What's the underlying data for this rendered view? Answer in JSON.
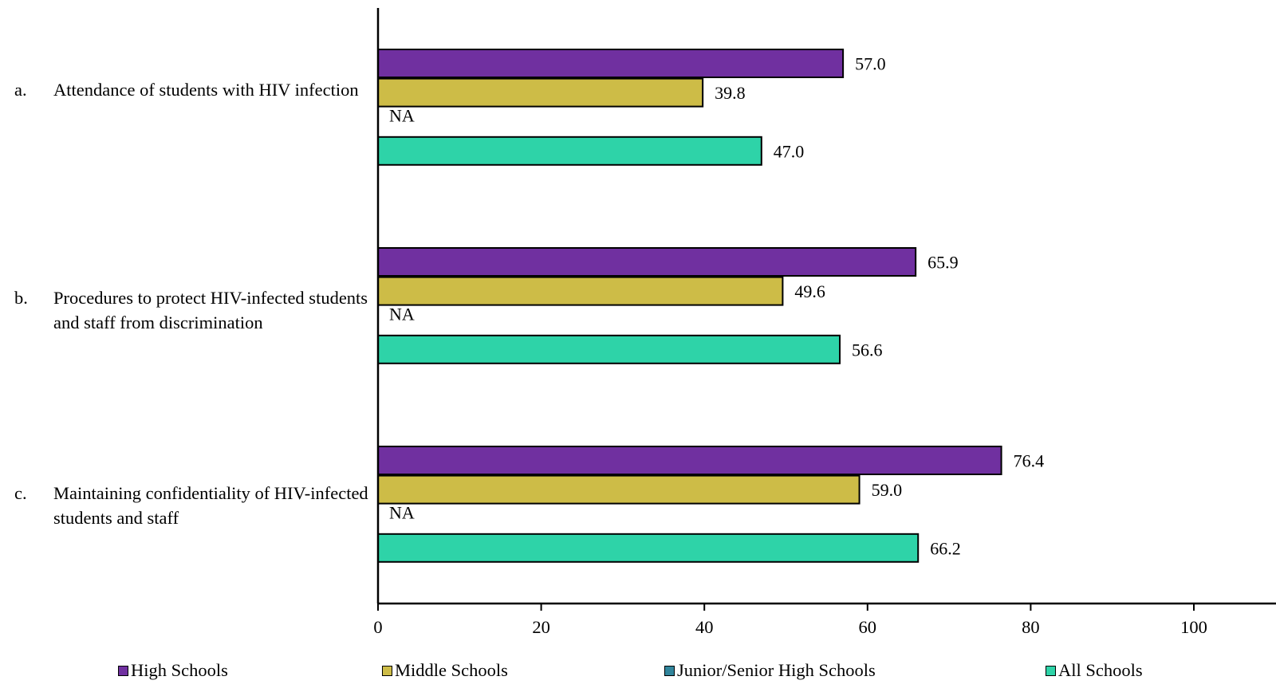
{
  "chart_data": {
    "type": "bar",
    "orientation": "horizontal",
    "categories": [
      {
        "letter": "a.",
        "text": "Attendance of students with HIV infection"
      },
      {
        "letter": "b.",
        "text": "Procedures to protect HIV-infected students and staff from discrimination"
      },
      {
        "letter": "c.",
        "text": "Maintaining confidentiality of HIV-infected students and staff"
      }
    ],
    "series": [
      {
        "name": "High Schools",
        "color": "#7030A0",
        "values": [
          57.0,
          65.9,
          76.4
        ],
        "labels": [
          "57.0",
          "65.9",
          "76.4"
        ]
      },
      {
        "name": "Middle Schools",
        "color": "#CDBC47",
        "values": [
          39.8,
          49.6,
          59.0
        ],
        "labels": [
          "39.8",
          "49.6",
          "59.0"
        ]
      },
      {
        "name": "Junior/Senior High Schools",
        "color": "#31859C",
        "values": [
          null,
          null,
          null
        ],
        "labels": [
          "NA",
          "NA",
          "NA"
        ]
      },
      {
        "name": "All Schools",
        "color": "#2ED3A8",
        "values": [
          47.0,
          56.6,
          66.2
        ],
        "labels": [
          "47.0",
          "56.6",
          "66.2"
        ]
      }
    ],
    "xlim": [
      0,
      100
    ],
    "xticks": [
      0,
      20,
      40,
      60,
      80,
      100
    ],
    "xtick_labels": [
      "0",
      "20",
      "40",
      "60",
      "80",
      "100"
    ],
    "legend_position": "bottom",
    "grid": false
  }
}
